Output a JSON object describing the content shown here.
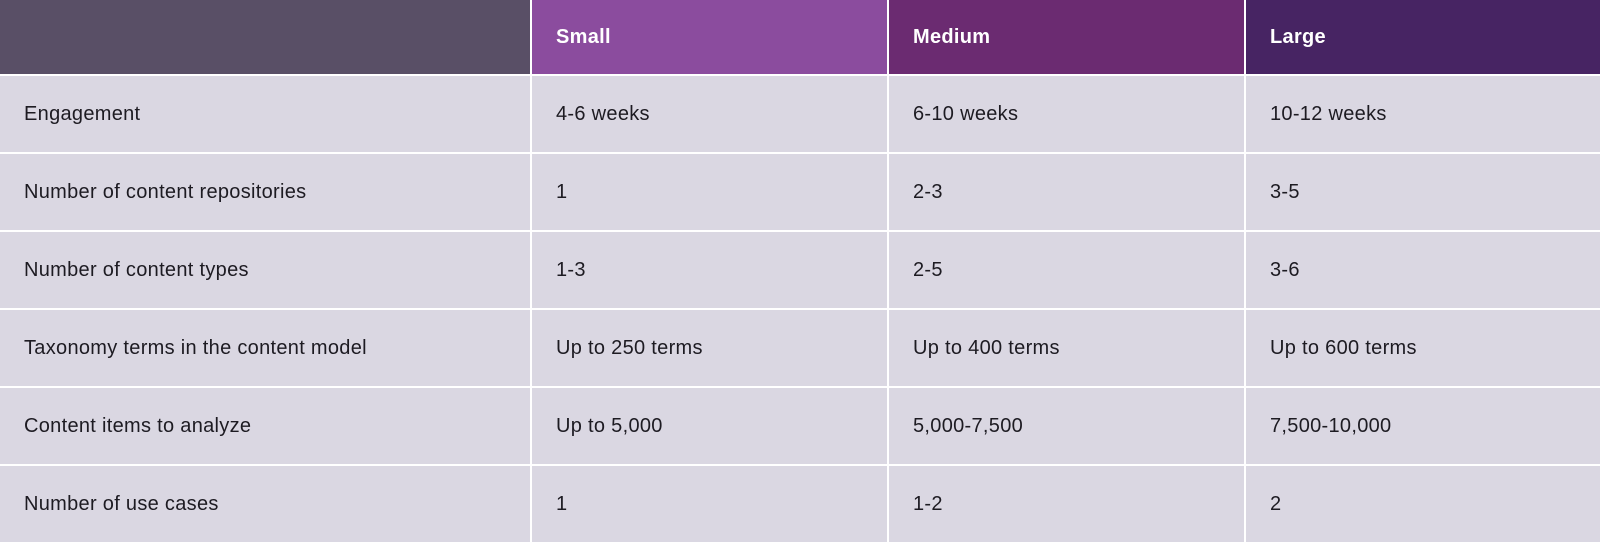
{
  "chart_data": {
    "type": "table",
    "title": "",
    "columns": [
      "",
      "Small",
      "Medium",
      "Large"
    ],
    "rows": [
      {
        "label": "Engagement",
        "values": [
          "4-6 weeks",
          "6-10 weeks",
          "10-12 weeks"
        ]
      },
      {
        "label": "Number of content repositories",
        "values": [
          "1",
          "2-3",
          "3-5"
        ]
      },
      {
        "label": "Number of content types",
        "values": [
          "1-3",
          "2-5",
          "3-6"
        ]
      },
      {
        "label": "Taxonomy terms in the content model",
        "values": [
          "Up to 250 terms",
          "Up to 400 terms",
          "Up to 600 terms"
        ]
      },
      {
        "label": "Content items to analyze",
        "values": [
          "Up to 5,000",
          "5,000-7,500",
          "7,500-10,000"
        ]
      },
      {
        "label": "Number of use cases",
        "values": [
          "1",
          "1-2",
          "2"
        ]
      }
    ],
    "layout": {
      "grid": "off",
      "header_position": "top",
      "gap_color": "#FFFFFF"
    }
  },
  "colors": {
    "corner_header_bg": "#594F66",
    "small_header_bg": "#8B4C9E",
    "medium_header_bg": "#6B2B71",
    "large_header_bg": "#472463",
    "cell_bg": "#DAD7E2",
    "header_text": "#FFFFFF",
    "body_text": "#1D1B22"
  }
}
